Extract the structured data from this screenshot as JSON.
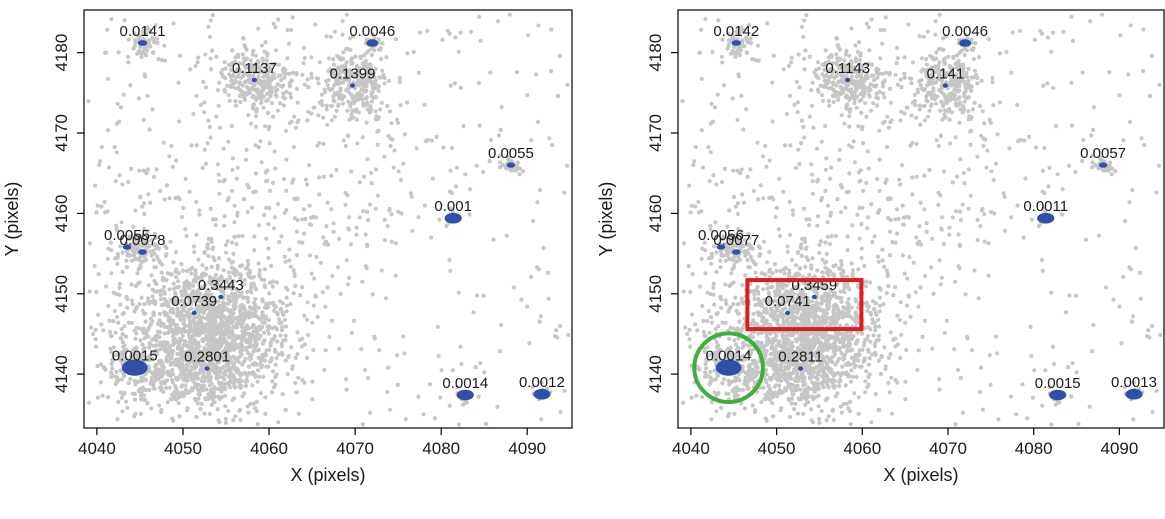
{
  "colors": {
    "background_points": "#c6c6c6",
    "centers": "#2f4fa8",
    "frame": "#000000",
    "highlight_box": "#e01b1b",
    "highlight_circle": "#3fae3a",
    "text": "#1a1a1a"
  },
  "chart_data": [
    {
      "type": "scatter",
      "xlabel": "X (pixels)",
      "ylabel": "Y (pixels)",
      "xlim": [
        4038.5,
        4095.2
      ],
      "ylim": [
        4133.3,
        4185.3
      ],
      "x_ticks": [
        4040,
        4050,
        4060,
        4070,
        4080,
        4090
      ],
      "y_ticks": [
        4140,
        4150,
        4160,
        4170,
        4180
      ],
      "grid": false,
      "centers": [
        {
          "label": "0.0141",
          "x": 4045.3,
          "y": 4181.2,
          "blob": 0.55
        },
        {
          "label": "0.0046",
          "x": 4072.0,
          "y": 4181.2,
          "blob": 0.7
        },
        {
          "label": "0.1137",
          "x": 4058.3,
          "y": 4176.6,
          "blob": 0.3
        },
        {
          "label": "0.1399",
          "x": 4069.7,
          "y": 4175.9,
          "blob": 0.3
        },
        {
          "label": "0.0055",
          "x": 4088.1,
          "y": 4166.0,
          "blob": 0.5
        },
        {
          "label": "0.001",
          "x": 4081.4,
          "y": 4159.4,
          "blob": 1.0
        },
        {
          "label": "0.0055",
          "x": 4043.5,
          "y": 4155.8,
          "blob": 0.5
        },
        {
          "label": "0.0078",
          "x": 4045.3,
          "y": 4155.2,
          "blob": 0.5
        },
        {
          "label": "0.3443",
          "x": 4054.4,
          "y": 4149.6,
          "blob": 0.3
        },
        {
          "label": "0.0739",
          "x": 4051.3,
          "y": 4147.6,
          "blob": 0.3
        },
        {
          "label": "0.0015",
          "x": 4044.4,
          "y": 4140.8,
          "blob": 1.5
        },
        {
          "label": "0.2801",
          "x": 4052.8,
          "y": 4140.7,
          "blob": 0.3
        },
        {
          "label": "0.0014",
          "x": 4082.8,
          "y": 4137.4,
          "blob": 1.0
        },
        {
          "label": "0.0012",
          "x": 4091.7,
          "y": 4137.5,
          "blob": 1.0
        }
      ],
      "highlights": []
    },
    {
      "type": "scatter",
      "xlabel": "X (pixels)",
      "ylabel": "Y (pixels)",
      "xlim": [
        4038.5,
        4095.2
      ],
      "ylim": [
        4133.3,
        4185.3
      ],
      "x_ticks": [
        4040,
        4050,
        4060,
        4070,
        4080,
        4090
      ],
      "y_ticks": [
        4140,
        4150,
        4160,
        4170,
        4180
      ],
      "grid": false,
      "centers": [
        {
          "label": "0.0142",
          "x": 4045.3,
          "y": 4181.2,
          "blob": 0.55
        },
        {
          "label": "0.0046",
          "x": 4072.0,
          "y": 4181.2,
          "blob": 0.7
        },
        {
          "label": "0.1143",
          "x": 4058.3,
          "y": 4176.6,
          "blob": 0.3
        },
        {
          "label": "0.141",
          "x": 4069.7,
          "y": 4175.9,
          "blob": 0.3
        },
        {
          "label": "0.0057",
          "x": 4088.1,
          "y": 4166.0,
          "blob": 0.5
        },
        {
          "label": "0.0011",
          "x": 4081.4,
          "y": 4159.4,
          "blob": 1.0
        },
        {
          "label": "0.0056",
          "x": 4043.5,
          "y": 4155.8,
          "blob": 0.5
        },
        {
          "label": "0.0077",
          "x": 4045.3,
          "y": 4155.2,
          "blob": 0.5
        },
        {
          "label": "0.3459",
          "x": 4054.4,
          "y": 4149.6,
          "blob": 0.3
        },
        {
          "label": "0.0741",
          "x": 4051.3,
          "y": 4147.6,
          "blob": 0.3
        },
        {
          "label": "0.0014",
          "x": 4044.4,
          "y": 4140.8,
          "blob": 1.5
        },
        {
          "label": "0.2811",
          "x": 4052.8,
          "y": 4140.7,
          "blob": 0.3
        },
        {
          "label": "0.0015",
          "x": 4082.8,
          "y": 4137.4,
          "blob": 1.0
        },
        {
          "label": "0.0013",
          "x": 4091.7,
          "y": 4137.5,
          "blob": 1.0
        }
      ],
      "highlights": [
        {
          "shape": "rectangle",
          "color": "red",
          "x_range": [
            4046.6,
            4059.9
          ],
          "y_range": [
            4145.6,
            4151.7
          ]
        },
        {
          "shape": "circle",
          "color": "green",
          "cx": 4044.4,
          "cy": 4140.8,
          "r_data": 4.0
        }
      ]
    }
  ]
}
